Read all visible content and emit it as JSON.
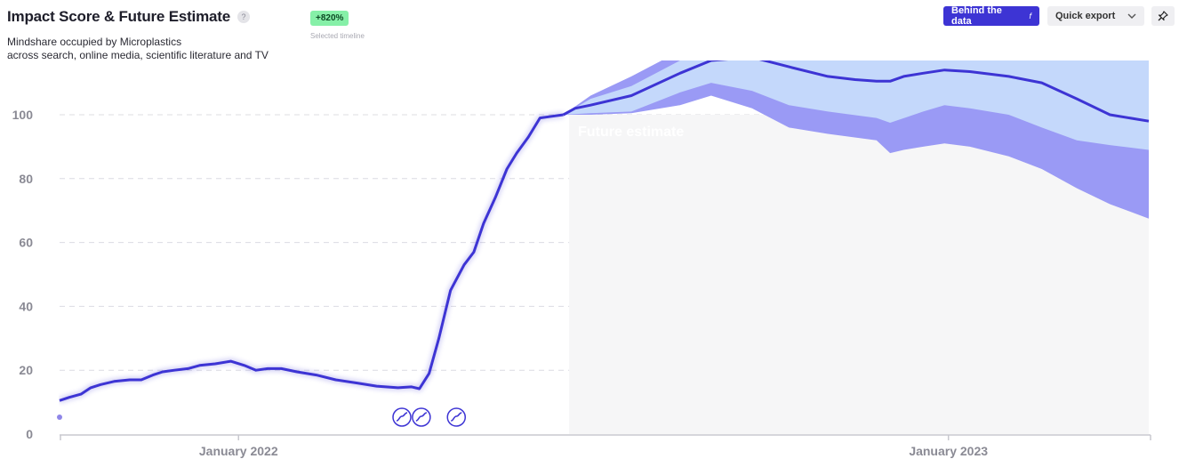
{
  "header": {
    "title": "Impact Score & Future Estimate",
    "help_glyph": "?",
    "subtitle_line1": "Mindshare occupied by Microplastics",
    "subtitle_line2": "across search, online media, scientific literature and TV"
  },
  "badge": {
    "value": "+820%",
    "caption": "Selected timeline",
    "color": "#86f0a8"
  },
  "toolbar": {
    "behind_label": "Behind the data",
    "behind_glyph": "f",
    "export_label": "Quick export",
    "pin_icon": "pin-icon"
  },
  "colors": {
    "line": "#3d34d4",
    "band_outer": "#9a9af5",
    "band_inner": "#c4d8fb",
    "estimate_bg": "#f6f6f7",
    "accent_button": "#3d34d4"
  },
  "chart_data": {
    "type": "line",
    "ylim": [
      0,
      100
    ],
    "yticks": [
      0,
      20,
      40,
      60,
      80,
      100
    ],
    "grid": true,
    "xticks": [
      {
        "label": "January 2022",
        "date": "2022-01-01"
      },
      {
        "label": "January 2023",
        "date": "2023-01-01"
      }
    ],
    "x_range": [
      "2021-10-01",
      "2023-04-14"
    ],
    "estimate_start": "2022-06-20",
    "estimate_label": "Future estimate",
    "series": [
      {
        "values": [
          [
            "2021-10-01",
            10.5
          ],
          [
            "2021-10-06",
            11.5
          ],
          [
            "2021-10-12",
            12.5
          ],
          [
            "2021-10-17",
            14.5
          ],
          [
            "2021-10-22",
            15.5
          ],
          [
            "2021-10-29",
            16.5
          ],
          [
            "2021-11-06",
            17
          ],
          [
            "2021-11-12",
            17
          ],
          [
            "2021-11-18",
            18.5
          ],
          [
            "2021-11-23",
            19.5
          ],
          [
            "2021-11-29",
            20
          ],
          [
            "2021-12-06",
            20.5
          ],
          [
            "2021-12-12",
            21.5
          ],
          [
            "2021-12-20",
            22
          ],
          [
            "2021-12-28",
            22.8
          ],
          [
            "2022-01-04",
            21.5
          ],
          [
            "2022-01-10",
            20
          ],
          [
            "2022-01-16",
            20.5
          ],
          [
            "2022-01-23",
            20.5
          ],
          [
            "2022-01-31",
            19.5
          ],
          [
            "2022-02-10",
            18.5
          ],
          [
            "2022-02-20",
            17
          ],
          [
            "2022-03-03",
            16
          ],
          [
            "2022-03-13",
            15
          ],
          [
            "2022-03-24",
            14.5
          ],
          [
            "2022-03-31",
            14.8
          ],
          [
            "2022-04-04",
            14.2
          ],
          [
            "2022-04-09",
            19
          ],
          [
            "2022-04-14",
            30
          ],
          [
            "2022-04-20",
            45
          ],
          [
            "2022-04-27",
            53
          ],
          [
            "2022-05-02",
            57
          ],
          [
            "2022-05-07",
            66
          ],
          [
            "2022-05-13",
            74
          ],
          [
            "2022-05-19",
            83
          ],
          [
            "2022-05-24",
            88
          ],
          [
            "2022-05-30",
            93
          ],
          [
            "2022-06-05",
            99
          ],
          [
            "2022-06-11",
            99.5
          ],
          [
            "2022-06-17",
            100
          ]
        ]
      }
    ],
    "forecast": {
      "median": [
        [
          "2022-06-17",
          100
        ],
        [
          "2022-06-23",
          102
        ],
        [
          "2022-07-01",
          103
        ],
        [
          "2022-07-22",
          106
        ],
        [
          "2022-08-16",
          113
        ],
        [
          "2022-09-01",
          117
        ],
        [
          "2022-09-22",
          118
        ],
        [
          "2022-10-11",
          115
        ],
        [
          "2022-10-31",
          112
        ],
        [
          "2022-11-14",
          111
        ],
        [
          "2022-11-25",
          110.5
        ],
        [
          "2022-12-02",
          110.5
        ],
        [
          "2022-12-09",
          112
        ],
        [
          "2022-12-19",
          113
        ],
        [
          "2022-12-30",
          114
        ],
        [
          "2023-01-12",
          113.5
        ],
        [
          "2023-02-01",
          112
        ],
        [
          "2023-02-18",
          110
        ],
        [
          "2023-03-08",
          105
        ],
        [
          "2023-03-25",
          100
        ],
        [
          "2023-04-14",
          98
        ]
      ],
      "inner_upper": [
        [
          "2022-06-17",
          100
        ],
        [
          "2022-07-01",
          105
        ],
        [
          "2022-07-22",
          109
        ],
        [
          "2022-08-16",
          117
        ],
        [
          "2022-09-22",
          122
        ],
        [
          "2022-10-31",
          119
        ],
        [
          "2022-12-02",
          119
        ],
        [
          "2023-01-01",
          122
        ],
        [
          "2023-02-01",
          121
        ],
        [
          "2023-03-08",
          120
        ],
        [
          "2023-04-14",
          119
        ]
      ],
      "inner_lower": [
        [
          "2022-06-17",
          100
        ],
        [
          "2022-07-01",
          100.5
        ],
        [
          "2022-07-22",
          101
        ],
        [
          "2022-08-16",
          107
        ],
        [
          "2022-09-01",
          110
        ],
        [
          "2022-09-22",
          107.5
        ],
        [
          "2022-10-11",
          103
        ],
        [
          "2022-10-31",
          101
        ],
        [
          "2022-11-25",
          99
        ],
        [
          "2022-12-02",
          97.5
        ],
        [
          "2022-12-19",
          101
        ],
        [
          "2022-12-30",
          103
        ],
        [
          "2023-01-12",
          102
        ],
        [
          "2023-02-01",
          100
        ],
        [
          "2023-02-18",
          96
        ],
        [
          "2023-03-08",
          92
        ],
        [
          "2023-03-25",
          90.5
        ],
        [
          "2023-04-14",
          89
        ]
      ],
      "outer_upper": [
        [
          "2022-06-17",
          100
        ],
        [
          "2022-07-01",
          106
        ],
        [
          "2022-07-22",
          112
        ],
        [
          "2022-08-16",
          120
        ],
        [
          "2022-09-22",
          124
        ],
        [
          "2023-01-01",
          124
        ],
        [
          "2023-04-14",
          124
        ]
      ],
      "outer_lower": [
        [
          "2022-06-17",
          100
        ],
        [
          "2022-07-01",
          100
        ],
        [
          "2022-07-22",
          100.5
        ],
        [
          "2022-08-16",
          103
        ],
        [
          "2022-09-01",
          106
        ],
        [
          "2022-09-22",
          102
        ],
        [
          "2022-10-11",
          96
        ],
        [
          "2022-10-31",
          94
        ],
        [
          "2022-11-25",
          92
        ],
        [
          "2022-12-02",
          88
        ],
        [
          "2022-12-09",
          89
        ],
        [
          "2022-12-19",
          90
        ],
        [
          "2022-12-30",
          91
        ],
        [
          "2023-01-12",
          90
        ],
        [
          "2023-02-01",
          87
        ],
        [
          "2023-02-18",
          83
        ],
        [
          "2023-03-08",
          77
        ],
        [
          "2023-03-25",
          72
        ],
        [
          "2023-04-14",
          67.5
        ]
      ]
    },
    "event_markers": [
      "2022-03-26",
      "2022-04-05",
      "2022-04-23"
    ]
  }
}
